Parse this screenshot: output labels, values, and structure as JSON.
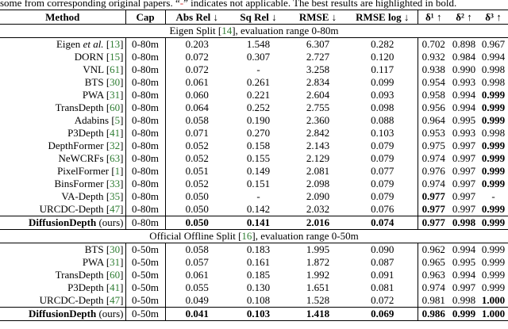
{
  "caption": {
    "text_before_dash": "some from corresponding original papers. “",
    "dash": "-",
    "text_after_dash": "” indicates not applicable. The best results are highlighted in bold."
  },
  "headers": {
    "method": "Method",
    "cap": "Cap",
    "abs_rel": "Abs Rel ↓",
    "sq_rel": "Sq Rel ↓",
    "rmse": "RMSE ↓",
    "rmse_log": "RMSE log ↓",
    "d1": "δ¹ ↑",
    "d2": "δ² ↑",
    "d3": "δ³ ↑"
  },
  "sections": [
    {
      "title_before": "Eigen Split [",
      "title_cite": "14",
      "title_after": "], evaluation range 0-80m",
      "rows": [
        {
          "name": "Eigen ",
          "name_italic": "et al.",
          "cite": "13",
          "cap": "0-80m",
          "abs_rel": "0.203",
          "sq_rel": "1.548",
          "rmse": "6.307",
          "rmse_log": "0.282",
          "d1": "0.702",
          "d2": "0.898",
          "d3": "0.967"
        },
        {
          "name": "DORN",
          "cite": "15",
          "cap": "0-80m",
          "abs_rel": "0.072",
          "sq_rel": "0.307",
          "rmse": "2.727",
          "rmse_log": "0.120",
          "d1": "0.932",
          "d2": "0.984",
          "d3": "0.994"
        },
        {
          "name": "VNL",
          "cite": "61",
          "cap": "0-80m",
          "abs_rel": "0.072",
          "sq_rel": "-",
          "rmse": "3.258",
          "rmse_log": "0.117",
          "d1": "0.938",
          "d2": "0.990",
          "d3": "0.998"
        },
        {
          "name": "BTS",
          "cite": "30",
          "cap": "0-80m",
          "abs_rel": "0.061",
          "sq_rel": "0.261",
          "rmse": "2.834",
          "rmse_log": "0.099",
          "d1": "0.954",
          "d2": "0.993",
          "d3": "0.998"
        },
        {
          "name": "PWA",
          "cite": "31",
          "cap": "0-80m",
          "abs_rel": "0.060",
          "sq_rel": "0.221",
          "rmse": "2.604",
          "rmse_log": "0.093",
          "d1": "0.958",
          "d2": "0.994",
          "d3": "0.999",
          "bold": [
            "d3"
          ]
        },
        {
          "name": "TransDepth",
          "cite": "60",
          "cap": "0-80m",
          "abs_rel": "0.064",
          "sq_rel": "0.252",
          "rmse": "2.755",
          "rmse_log": "0.098",
          "d1": "0.956",
          "d2": "0.994",
          "d3": "0.999",
          "bold": [
            "d3"
          ]
        },
        {
          "name": "Adabins",
          "cite": "5",
          "cap": "0-80m",
          "abs_rel": "0.058",
          "sq_rel": "0.190",
          "rmse": "2.360",
          "rmse_log": "0.088",
          "d1": "0.964",
          "d2": "0.995",
          "d3": "0.999",
          "bold": [
            "d3"
          ]
        },
        {
          "name": "P3Depth",
          "cite": "41",
          "cap": "0-80m",
          "abs_rel": "0.071",
          "sq_rel": "0.270",
          "rmse": "2.842",
          "rmse_log": "0.103",
          "d1": "0.953",
          "d2": "0.993",
          "d3": "0.998"
        },
        {
          "name": "DepthFormer",
          "cite": "32",
          "cap": "0-80m",
          "abs_rel": "0.052",
          "sq_rel": "0.158",
          "rmse": "2.143",
          "rmse_log": "0.079",
          "d1": "0.975",
          "d2": "0.997",
          "d3": "0.999",
          "bold": [
            "d3"
          ]
        },
        {
          "name": "NeWCRFs",
          "cite": "63",
          "cap": "0-80m",
          "abs_rel": "0.052",
          "sq_rel": "0.155",
          "rmse": "2.129",
          "rmse_log": "0.079",
          "d1": "0.974",
          "d2": "0.997",
          "d3": "0.999",
          "bold": [
            "d3"
          ]
        },
        {
          "name": "PixelFormer",
          "cite": "1",
          "cap": "0-80m",
          "abs_rel": "0.051",
          "sq_rel": "0.149",
          "rmse": "2.081",
          "rmse_log": "0.077",
          "d1": "0.976",
          "d2": "0.997",
          "d3": "0.999",
          "bold": [
            "d3"
          ]
        },
        {
          "name": "BinsFormer",
          "cite": "33",
          "cap": "0-80m",
          "abs_rel": "0.052",
          "sq_rel": "0.151",
          "rmse": "2.098",
          "rmse_log": "0.079",
          "d1": "0.974",
          "d2": "0.997",
          "d3": "0.999",
          "bold": [
            "d3"
          ]
        },
        {
          "name": "VA-Depth",
          "cite": "35",
          "cap": "0-80m",
          "abs_rel": "0.050",
          "sq_rel": "-",
          "rmse": "2.090",
          "rmse_log": "0.079",
          "d1": "0.977",
          "d2": "0.997",
          "d3": "-",
          "bold": [
            "d1"
          ]
        },
        {
          "name": "URCDC-Depth",
          "cite": "47",
          "cap": "0-80m",
          "abs_rel": "0.050",
          "sq_rel": "0.142",
          "rmse": "2.032",
          "rmse_log": "0.076",
          "d1": "0.977",
          "d2": "0.997",
          "d3": "0.999",
          "bold": [
            "d1",
            "d3"
          ]
        },
        {
          "name": "DiffusionDepth",
          "name_suffix": " (ours)",
          "ours": true,
          "cap": "0-80m",
          "abs_rel": "0.050",
          "sq_rel": "0.141",
          "rmse": "2.016",
          "rmse_log": "0.074",
          "d1": "0.977",
          "d2": "0.998",
          "d3": "0.999",
          "bold": [
            "abs_rel",
            "sq_rel",
            "rmse",
            "rmse_log",
            "d1",
            "d2",
            "d3"
          ]
        }
      ]
    },
    {
      "title_before": "Official Offline Split [",
      "title_cite": "16",
      "title_after": "], evaluation range 0-50m",
      "rows": [
        {
          "name": "BTS",
          "cite": "30",
          "cap": "0-50m",
          "abs_rel": "0.058",
          "sq_rel": "0.183",
          "rmse": "1.995",
          "rmse_log": "0.090",
          "d1": "0.962",
          "d2": "0.994",
          "d3": "0.999"
        },
        {
          "name": "PWA",
          "cite": "31",
          "cap": "0-50m",
          "abs_rel": "0.057",
          "sq_rel": "0.161",
          "rmse": "1.872",
          "rmse_log": "0.087",
          "d1": "0.965",
          "d2": "0.995",
          "d3": "0.999"
        },
        {
          "name": "TransDepth",
          "cite": "60",
          "cap": "0-50m",
          "abs_rel": "0.061",
          "sq_rel": "0.185",
          "rmse": "1.992",
          "rmse_log": "0.091",
          "d1": "0.963",
          "d2": "0.994",
          "d3": "0.999"
        },
        {
          "name": "P3Depth",
          "cite": "41",
          "cap": "0-50m",
          "abs_rel": "0.055",
          "sq_rel": "0.130",
          "rmse": "1.651",
          "rmse_log": "0.081",
          "d1": "0.974",
          "d2": "0.997",
          "d3": "0.999"
        },
        {
          "name": "URCDC-Depth",
          "cite": "47",
          "cap": "0-50m",
          "abs_rel": "0.049",
          "sq_rel": "0.108",
          "rmse": "1.528",
          "rmse_log": "0.072",
          "d1": "0.981",
          "d2": "0.998",
          "d3": "1.000",
          "bold": [
            "d3"
          ]
        },
        {
          "name": "DiffusionDepth",
          "name_suffix": " (ours)",
          "ours": true,
          "cap": "0-50m",
          "abs_rel": "0.041",
          "sq_rel": "0.103",
          "rmse": "1.418",
          "rmse_log": "0.069",
          "d1": "0.986",
          "d2": "0.999",
          "d3": "1.000",
          "bold": [
            "abs_rel",
            "sq_rel",
            "rmse",
            "rmse_log",
            "d1",
            "d2",
            "d3"
          ]
        }
      ]
    }
  ]
}
